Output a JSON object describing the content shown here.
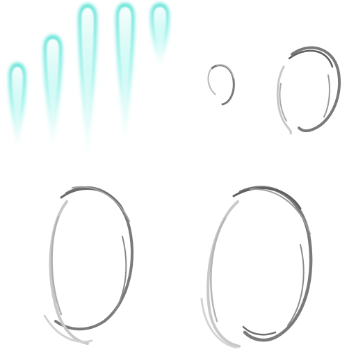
{
  "sprite_sheet": {
    "background": "#ffffff",
    "frame_count": 9,
    "groups": [
      {
        "name": "cyan-streak-frames",
        "frames": 5,
        "color": "#5fe3d6",
        "glow": "#bff6f0"
      },
      {
        "name": "grey-ring-frames",
        "frames": 4,
        "dark": "#7a7a7a",
        "light": "#c8c8c8"
      }
    ]
  }
}
